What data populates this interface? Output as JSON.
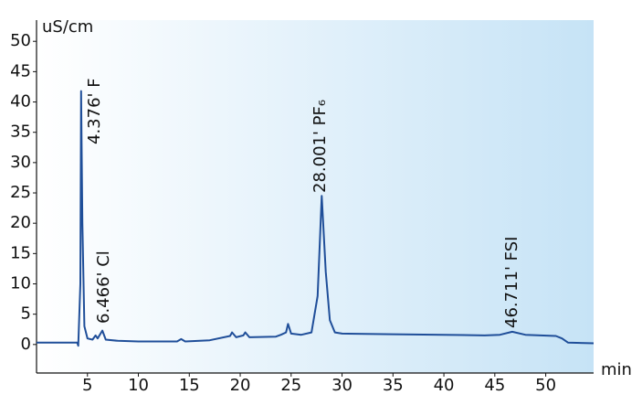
{
  "chart_data": {
    "type": "line",
    "y_label": "uS/cm",
    "x_label": "min",
    "x": [
      0,
      4.0,
      4.1,
      4.3,
      4.376,
      4.5,
      4.7,
      5.0,
      5.5,
      5.8,
      6.0,
      6.466,
      6.8,
      8,
      10,
      13.8,
      14.2,
      14.6,
      17,
      19,
      19.2,
      19.6,
      20.3,
      20.5,
      20.9,
      23.5,
      24,
      24.5,
      24.7,
      25,
      26,
      27,
      27.6,
      28.001,
      28.4,
      28.8,
      29.3,
      30,
      35,
      40,
      44,
      45.5,
      46.711,
      48,
      51,
      51.6,
      52.2,
      54.7
    ],
    "values": [
      0.3,
      0.3,
      -0.2,
      10,
      41.8,
      20,
      3,
      1.0,
      0.8,
      1.5,
      1.0,
      2.3,
      0.8,
      0.6,
      0.5,
      0.5,
      0.9,
      0.5,
      0.7,
      1.4,
      2.0,
      1.2,
      1.5,
      2.0,
      1.2,
      1.3,
      1.6,
      2.0,
      3.4,
      1.8,
      1.6,
      2.0,
      8,
      24.5,
      12,
      4,
      2.0,
      1.8,
      1.7,
      1.6,
      1.5,
      1.6,
      2.1,
      1.6,
      1.4,
      1.0,
      0.3,
      0.2
    ],
    "color": "#1f4e99",
    "xlim": [
      0,
      54.7
    ],
    "ylim": [
      -4.7,
      53.5
    ],
    "xticks": [
      5,
      10,
      15,
      20,
      25,
      30,
      35,
      40,
      45,
      50
    ],
    "yticks": [
      0,
      5,
      10,
      15,
      20,
      25,
      30,
      35,
      40,
      45,
      50
    ],
    "grid": false,
    "annotations": [
      "4.376' F",
      "6.466' Cl",
      "28.001' PF₆",
      "46.711' FSI"
    ]
  }
}
